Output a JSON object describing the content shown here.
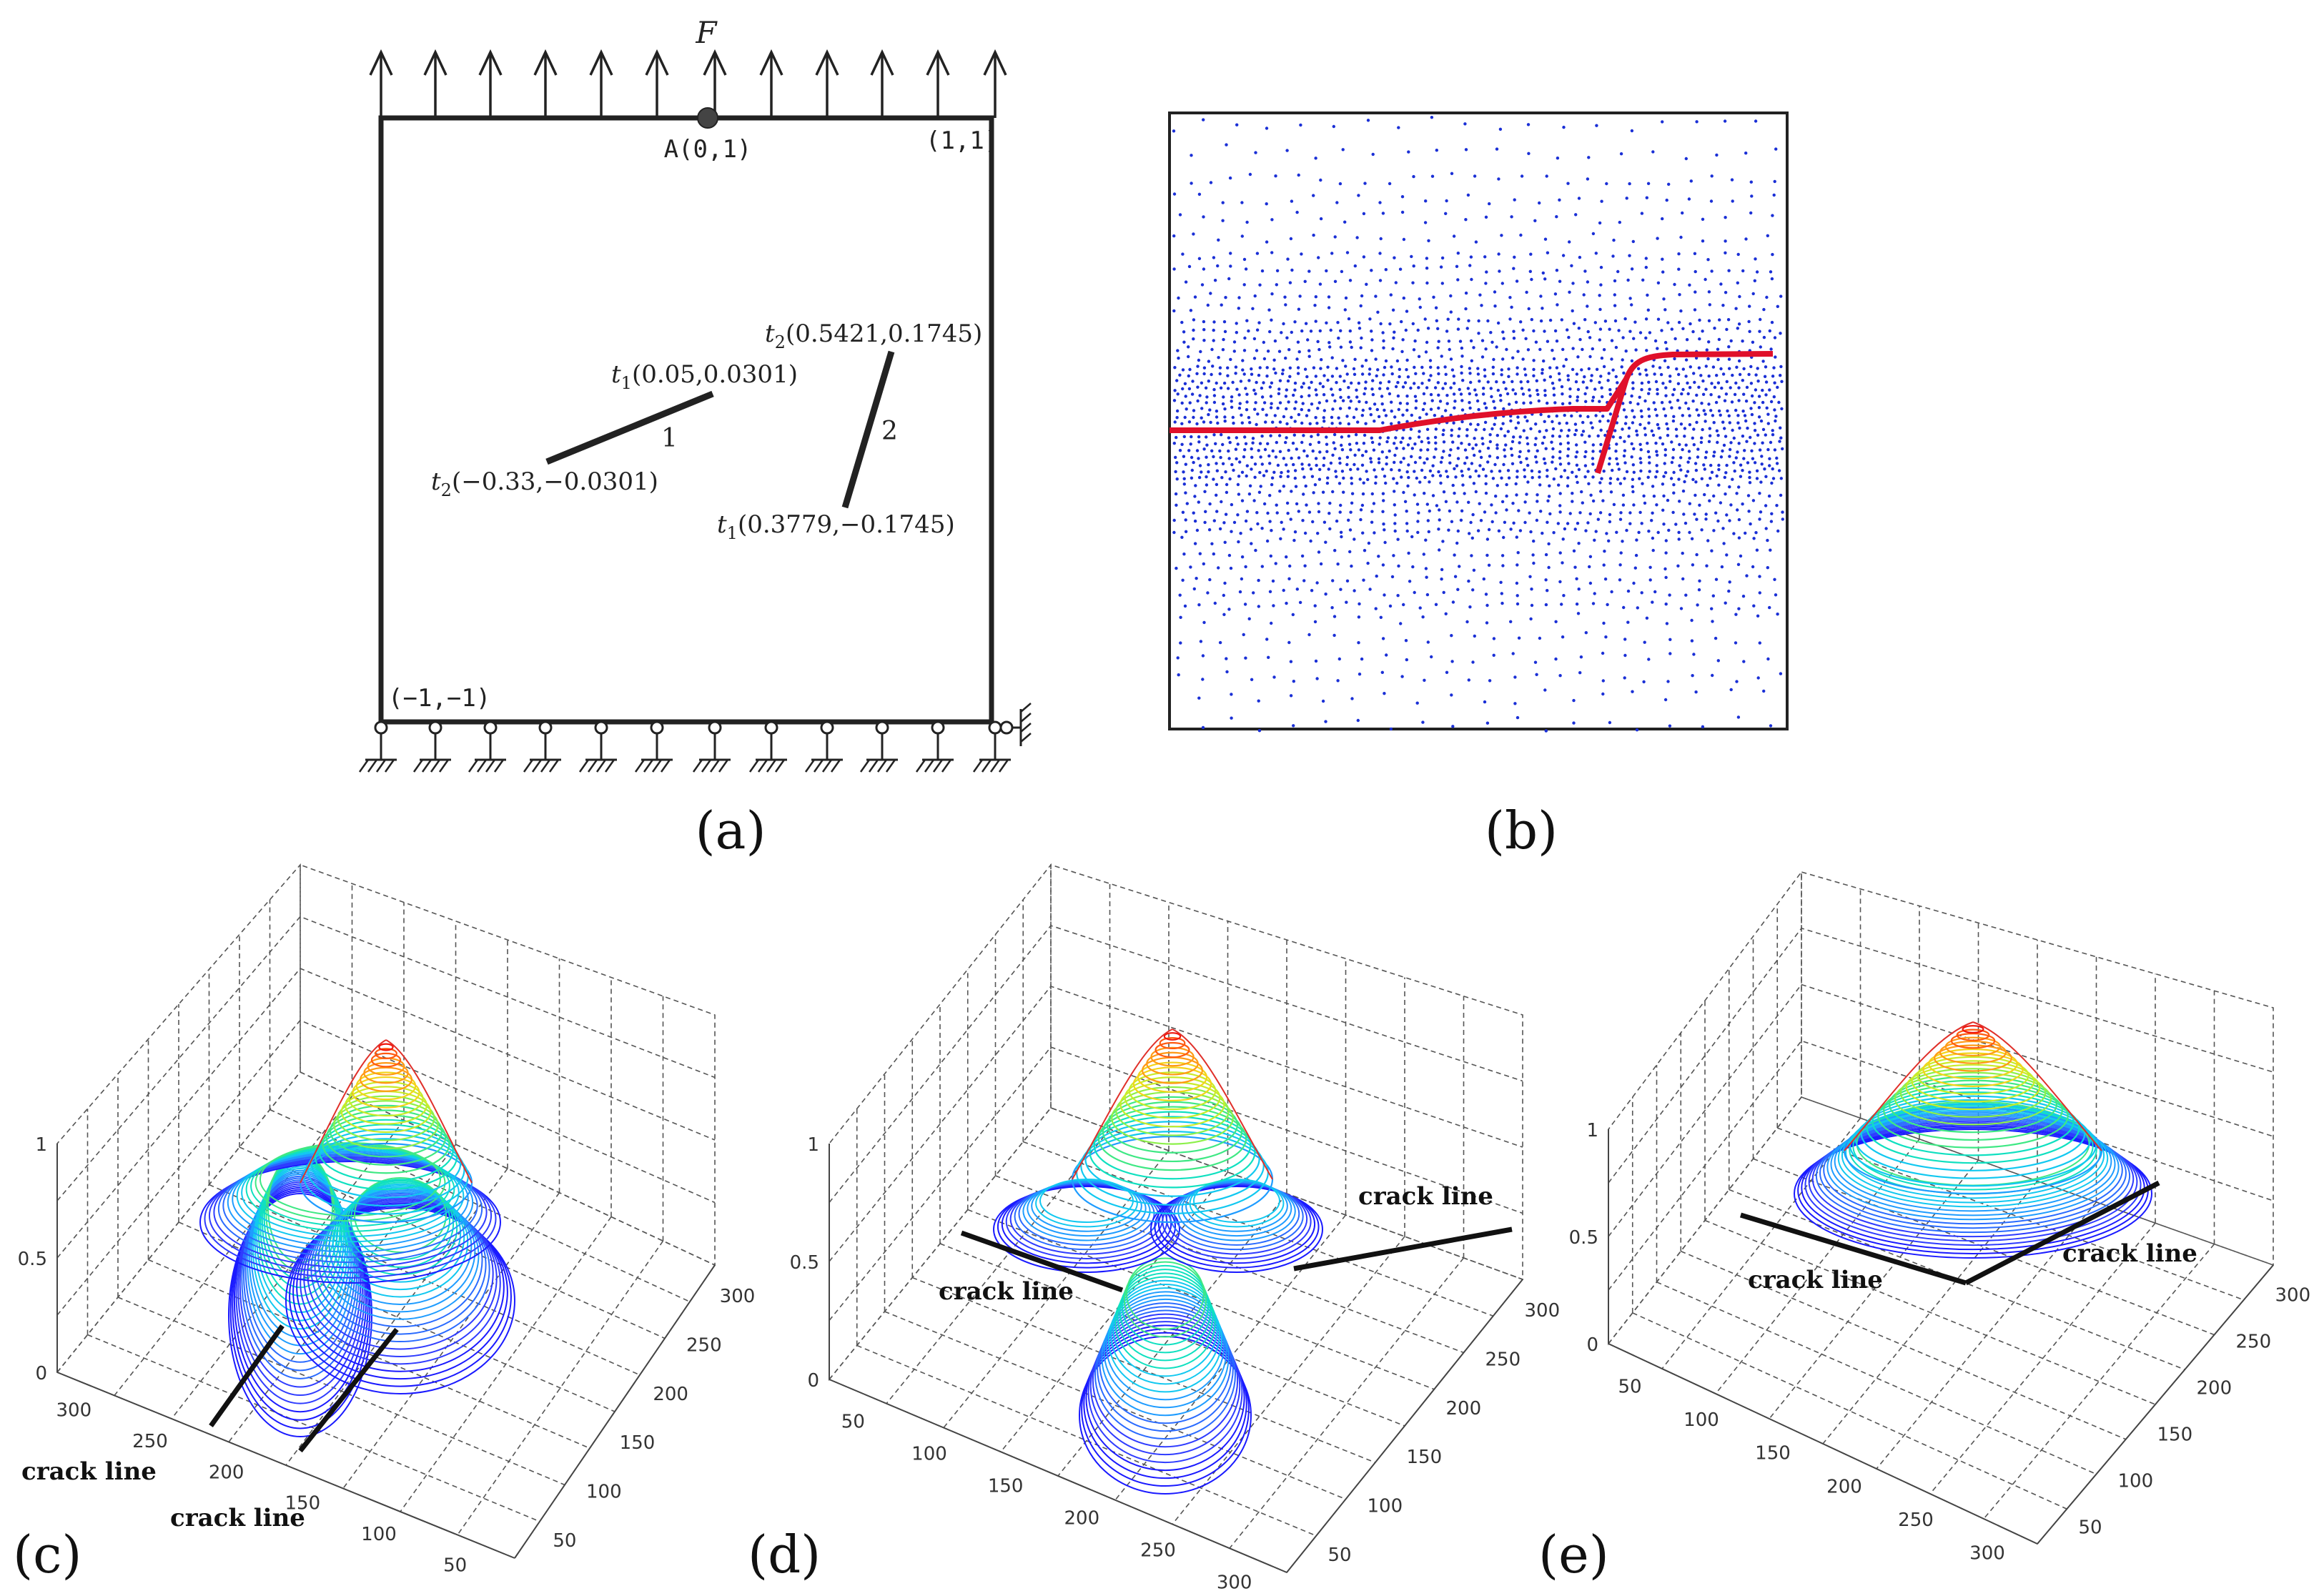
{
  "panel_a": {
    "force_label": "F",
    "point_a": "A(0,1)",
    "corner_top_right": "(1,1)",
    "corner_bottom_left": "(−1,−1)",
    "crack1": {
      "number": "1",
      "tip1": "(0.05,0.0301)",
      "tip2": "(−0.33,−0.0301)"
    },
    "crack2": {
      "number": "2",
      "tip1": "(0.3779,−0.1745)",
      "tip2": "(0.5421,0.1745)"
    },
    "tip1_name": "t",
    "tip1_sub": "1",
    "tip2_name": "t",
    "tip2_sub": "2"
  },
  "panel_b": {
    "node_color": "#1a2fd6",
    "crack_color": "#e0102a"
  },
  "captions": {
    "a": "(a)",
    "b": "(b)",
    "c": "(c)",
    "d": "(d)",
    "e": "(e)"
  },
  "panel_c": {
    "z_ticks": [
      "0",
      "0.5",
      "1"
    ],
    "x_ticks": [
      "300",
      "250",
      "200",
      "150",
      "100",
      "50"
    ],
    "y_ticks": [
      "50",
      "100",
      "150",
      "200",
      "250",
      "300"
    ],
    "crack_label_1": "crack line",
    "crack_label_2": "crack line"
  },
  "panel_d": {
    "z_ticks": [
      "0",
      "0.5",
      "1"
    ],
    "x_ticks": [
      "50",
      "100",
      "150",
      "200",
      "250",
      "300"
    ],
    "y_ticks": [
      "50",
      "100",
      "150",
      "200",
      "250",
      "300"
    ],
    "crack_label_1": "crack line",
    "crack_label_2": "crack line"
  },
  "panel_e": {
    "z_ticks": [
      "0",
      "0.5",
      "1"
    ],
    "x_ticks": [
      "50",
      "100",
      "150",
      "200",
      "250",
      "300"
    ],
    "y_ticks": [
      "50",
      "100",
      "150",
      "200",
      "250",
      "300"
    ],
    "crack_label_1": "crack line",
    "crack_label_2": "crack line"
  }
}
